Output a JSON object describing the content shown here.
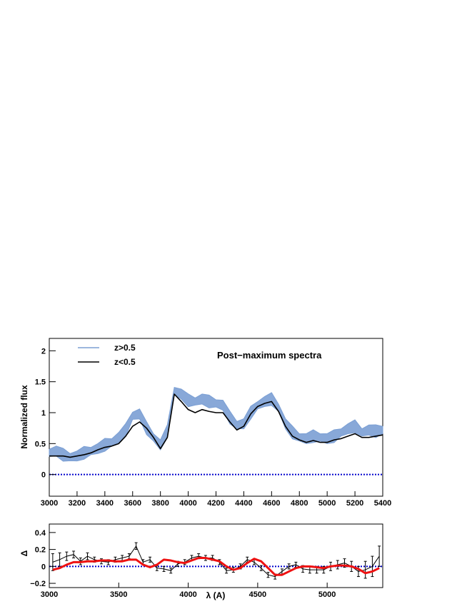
{
  "chart_data": [
    {
      "type": "line",
      "title": "Post−maximum spectra",
      "xlabel": "",
      "ylabel": "Normalized flux",
      "xlim": [
        3000,
        5400
      ],
      "ylim": [
        -0.35,
        2.2
      ],
      "x_ticks": [
        3000,
        3200,
        3400,
        3600,
        3800,
        4000,
        4200,
        4400,
        4600,
        4800,
        5000,
        5200,
        5400
      ],
      "y_ticks": [
        0,
        0.5,
        1,
        1.5,
        2
      ],
      "y_tick_labels": [
        "0",
        "0.5",
        "1",
        "1.5",
        "2"
      ],
      "legend": "top-left",
      "reference_line": 0,
      "series": [
        {
          "name": "z>0.5",
          "color": "#7b9fd4",
          "style": "band",
          "x": [
            3000,
            3050,
            3100,
            3150,
            3200,
            3250,
            3300,
            3350,
            3400,
            3450,
            3500,
            3550,
            3600,
            3650,
            3700,
            3750,
            3800,
            3850,
            3900,
            3950,
            4000,
            4050,
            4100,
            4150,
            4200,
            4250,
            4300,
            4350,
            4400,
            4450,
            4500,
            4550,
            4600,
            4650,
            4700,
            4750,
            4800,
            4850,
            4900,
            4950,
            5000,
            5050,
            5100,
            5150,
            5200,
            5250,
            5300,
            5350,
            5400
          ],
          "values": [
            0.35,
            0.38,
            0.32,
            0.28,
            0.3,
            0.35,
            0.38,
            0.42,
            0.48,
            0.52,
            0.6,
            0.72,
            0.95,
            0.98,
            0.75,
            0.6,
            0.48,
            0.7,
            1.35,
            1.3,
            1.2,
            1.18,
            1.22,
            1.18,
            1.15,
            1.12,
            0.92,
            0.8,
            0.82,
            1.0,
            1.12,
            1.18,
            1.22,
            1.08,
            0.82,
            0.68,
            0.6,
            0.58,
            0.62,
            0.6,
            0.58,
            0.62,
            0.68,
            0.74,
            0.78,
            0.68,
            0.72,
            0.7,
            0.72
          ]
        },
        {
          "name": "z<0.5",
          "color": "#000000",
          "style": "line",
          "x": [
            3000,
            3050,
            3100,
            3150,
            3200,
            3250,
            3300,
            3350,
            3400,
            3450,
            3500,
            3550,
            3600,
            3650,
            3700,
            3750,
            3800,
            3850,
            3900,
            3950,
            4000,
            4050,
            4100,
            4150,
            4200,
            4250,
            4300,
            4350,
            4400,
            4450,
            4500,
            4550,
            4600,
            4650,
            4700,
            4750,
            4800,
            4850,
            4900,
            4950,
            5000,
            5050,
            5100,
            5150,
            5200,
            5250,
            5300,
            5350,
            5400
          ],
          "values": [
            0.3,
            0.3,
            0.3,
            0.28,
            0.3,
            0.32,
            0.35,
            0.4,
            0.44,
            0.46,
            0.5,
            0.62,
            0.78,
            0.85,
            0.75,
            0.6,
            0.42,
            0.6,
            1.3,
            1.18,
            1.05,
            1.0,
            1.05,
            1.02,
            1.0,
            1.0,
            0.85,
            0.72,
            0.78,
            0.98,
            1.1,
            1.15,
            1.18,
            1.02,
            0.78,
            0.62,
            0.56,
            0.52,
            0.55,
            0.52,
            0.52,
            0.56,
            0.58,
            0.62,
            0.66,
            0.6,
            0.6,
            0.62,
            0.64
          ]
        }
      ]
    },
    {
      "type": "line",
      "title": "",
      "xlabel": "λ (A)",
      "ylabel": "Δ",
      "xlim": [
        3000,
        5400
      ],
      "ylim": [
        -0.25,
        0.5
      ],
      "x_ticks": [
        3000,
        3500,
        4000,
        4500,
        5000
      ],
      "y_ticks": [
        -0.2,
        0,
        0.2,
        0.4
      ],
      "y_tick_labels": [
        "−0.2",
        "0",
        "0.2",
        "0.4"
      ],
      "reference_line": 0,
      "series": [
        {
          "name": "",
          "color": "#000000",
          "style": "points-errorbars",
          "x": [
            3025,
            3075,
            3125,
            3175,
            3225,
            3275,
            3325,
            3375,
            3425,
            3475,
            3525,
            3575,
            3625,
            3675,
            3725,
            3775,
            3825,
            3875,
            3925,
            3975,
            4025,
            4075,
            4125,
            4175,
            4225,
            4275,
            4325,
            4375,
            4425,
            4475,
            4525,
            4575,
            4625,
            4675,
            4725,
            4775,
            4825,
            4875,
            4925,
            4975,
            5025,
            5075,
            5125,
            5175,
            5225,
            5275,
            5325,
            5375
          ],
          "values": [
            0.05,
            0.08,
            0.12,
            0.14,
            0.06,
            0.12,
            0.08,
            0.06,
            0.05,
            0.08,
            0.1,
            0.12,
            0.24,
            0.05,
            0.08,
            -0.02,
            -0.03,
            -0.05,
            0.03,
            0.05,
            0.1,
            0.12,
            0.1,
            0.1,
            0.05,
            -0.05,
            -0.04,
            0.0,
            0.08,
            0.05,
            -0.02,
            -0.1,
            -0.12,
            -0.06,
            0.0,
            0.02,
            -0.03,
            -0.04,
            -0.04,
            -0.04,
            0.0,
            0.02,
            0.04,
            0.0,
            -0.06,
            -0.04,
            0.0,
            0.12
          ],
          "errors": [
            0.1,
            0.08,
            0.05,
            0.04,
            0.04,
            0.04,
            0.03,
            0.03,
            0.03,
            0.03,
            0.03,
            0.03,
            0.04,
            0.03,
            0.03,
            0.03,
            0.03,
            0.03,
            0.03,
            0.03,
            0.03,
            0.03,
            0.03,
            0.03,
            0.03,
            0.03,
            0.03,
            0.03,
            0.03,
            0.03,
            0.03,
            0.03,
            0.03,
            0.03,
            0.03,
            0.03,
            0.04,
            0.04,
            0.04,
            0.04,
            0.05,
            0.05,
            0.05,
            0.06,
            0.06,
            0.1,
            0.12,
            0.12
          ]
        },
        {
          "name": "",
          "color": "#ee1111",
          "style": "line",
          "x": [
            3025,
            3075,
            3125,
            3175,
            3225,
            3275,
            3325,
            3375,
            3425,
            3475,
            3525,
            3575,
            3625,
            3675,
            3725,
            3775,
            3825,
            3875,
            3925,
            3975,
            4025,
            4075,
            4125,
            4175,
            4225,
            4275,
            4325,
            4375,
            4425,
            4475,
            4525,
            4575,
            4625,
            4675,
            4725,
            4775,
            4825,
            4875,
            4925,
            4975,
            5025,
            5075,
            5125,
            5175,
            5225,
            5275,
            5325,
            5375
          ],
          "values": [
            -0.04,
            -0.02,
            0.02,
            0.05,
            0.05,
            0.06,
            0.06,
            0.07,
            0.07,
            0.06,
            0.06,
            0.08,
            0.08,
            0.02,
            -0.01,
            0.02,
            0.08,
            0.07,
            0.05,
            0.04,
            0.07,
            0.1,
            0.1,
            0.08,
            0.06,
            0.0,
            -0.04,
            -0.02,
            0.04,
            0.09,
            0.06,
            -0.02,
            -0.1,
            -0.1,
            -0.06,
            -0.02,
            0.0,
            0.0,
            -0.01,
            -0.02,
            0.0,
            0.01,
            0.01,
            0.0,
            -0.03,
            -0.08,
            -0.06,
            -0.02
          ]
        }
      ]
    }
  ]
}
